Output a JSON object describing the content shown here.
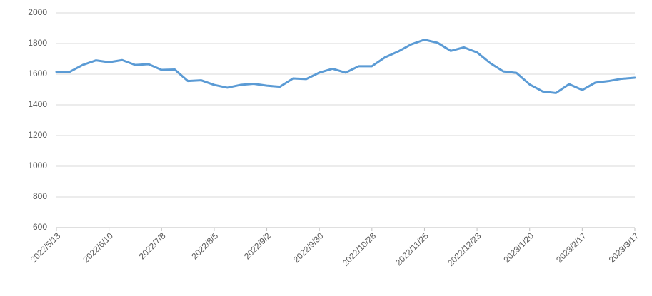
{
  "chart_data": {
    "type": "line",
    "categories": [
      "2022/5/13",
      null,
      null,
      null,
      "2022/6/10",
      null,
      null,
      null,
      "2022/7/8",
      null,
      null,
      null,
      "2022/8/5",
      null,
      null,
      null,
      "2022/9/2",
      null,
      null,
      null,
      "2022/9/30",
      null,
      null,
      null,
      "2022/10/28",
      null,
      null,
      null,
      "2022/11/25",
      null,
      null,
      null,
      "2022/12/23",
      null,
      null,
      null,
      "2023/1/20",
      null,
      null,
      null,
      "2023/2/17",
      null,
      null,
      null,
      "2023/3/17"
    ],
    "values": [
      1615,
      1615,
      1660,
      1690,
      1678,
      1692,
      1660,
      1665,
      1628,
      1630,
      1555,
      1560,
      1530,
      1512,
      1530,
      1537,
      1525,
      1518,
      1572,
      1568,
      1610,
      1635,
      1610,
      1652,
      1652,
      1710,
      1748,
      1795,
      1825,
      1805,
      1752,
      1775,
      1742,
      1672,
      1618,
      1608,
      1533,
      1487,
      1477,
      1535,
      1497,
      1545,
      1555,
      1570,
      1577
    ],
    "color": "#5b9bd5",
    "ylim": [
      600,
      2000
    ],
    "yticks": [
      600,
      800,
      1000,
      1200,
      1400,
      1600,
      1800,
      2000
    ],
    "grid": true
  }
}
